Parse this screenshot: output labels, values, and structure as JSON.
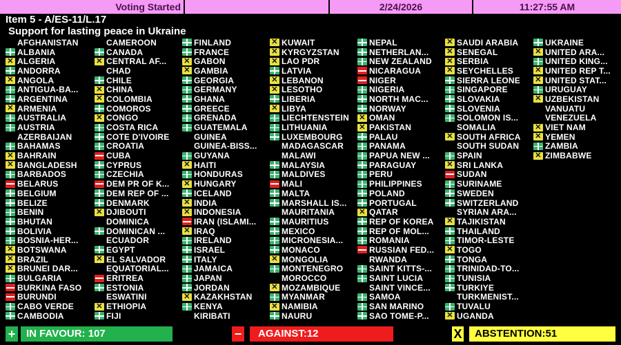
{
  "header": {
    "status": "Voting Started",
    "blank": "",
    "date": "2/24/2026",
    "time": "11:27:55 AM"
  },
  "item": {
    "title": "Item 5 - A/ES-11/L.17",
    "subtitle": "Support for lasting peace in Ukraine"
  },
  "vote_legend": {
    "Y": "in-favour",
    "N": "against",
    "A": "abstention",
    "": "not-voting"
  },
  "colors": {
    "in_favour": "#22b14c",
    "against": "#ee1c1c",
    "abstention": "#ffff40",
    "header": "#f59af5"
  },
  "columns": [
    [
      [
        "AFGHANISTAN",
        ""
      ],
      [
        "ALBANIA",
        "Y"
      ],
      [
        "ALGERIA",
        "A"
      ],
      [
        "ANDORRA",
        "Y"
      ],
      [
        "ANGOLA",
        "A"
      ],
      [
        "ANTIGUA-BA...",
        "Y"
      ],
      [
        "ARGENTINA",
        "Y"
      ],
      [
        "ARMENIA",
        "A"
      ],
      [
        "AUSTRALIA",
        "Y"
      ],
      [
        "AUSTRIA",
        "Y"
      ],
      [
        "AZERBAIJAN",
        ""
      ],
      [
        "BAHAMAS",
        "Y"
      ],
      [
        "BAHRAIN",
        "A"
      ],
      [
        "BANGLADESH",
        "A"
      ],
      [
        "BARBADOS",
        "Y"
      ],
      [
        "BELARUS",
        "N"
      ],
      [
        "BELGIUM",
        "Y"
      ],
      [
        "BELIZE",
        "Y"
      ],
      [
        "BENIN",
        "Y"
      ],
      [
        "BHUTAN",
        "Y"
      ],
      [
        "BOLIVIA",
        "Y"
      ],
      [
        "BOSNIA-HER...",
        "Y"
      ],
      [
        "BOTSWANA",
        "A"
      ],
      [
        "BRAZIL",
        "A"
      ],
      [
        "BRUNEI DAR...",
        "A"
      ],
      [
        "BULGARIA",
        "Y"
      ],
      [
        "BURKINA FASO",
        "N"
      ],
      [
        "BURUNDI",
        "N"
      ],
      [
        "CABO VERDE",
        "Y"
      ],
      [
        "CAMBODIA",
        "Y"
      ]
    ],
    [
      [
        "CAMEROON",
        ""
      ],
      [
        "CANADA",
        "Y"
      ],
      [
        "CENTRAL AF...",
        "A"
      ],
      [
        "CHAD",
        ""
      ],
      [
        "CHILE",
        "Y"
      ],
      [
        "CHINA",
        "A"
      ],
      [
        "COLOMBIA",
        "A"
      ],
      [
        "COMOROS",
        "Y"
      ],
      [
        "CONGO",
        "A"
      ],
      [
        "COSTA RICA",
        "Y"
      ],
      [
        "COTE D'IVOIRE",
        "Y"
      ],
      [
        "CROATIA",
        "Y"
      ],
      [
        "CUBA",
        "N"
      ],
      [
        "CYPRUS",
        "Y"
      ],
      [
        "CZECHIA",
        "Y"
      ],
      [
        "DEM PR OF K...",
        "N"
      ],
      [
        "DEM REP OF ...",
        "Y"
      ],
      [
        "DENMARK",
        "Y"
      ],
      [
        "DJIBOUTI",
        "A"
      ],
      [
        "DOMINICA",
        ""
      ],
      [
        "DOMINICAN ...",
        "Y"
      ],
      [
        "ECUADOR",
        ""
      ],
      [
        "EGYPT",
        "Y"
      ],
      [
        "EL SALVADOR",
        "A"
      ],
      [
        "EQUATORIAL...",
        ""
      ],
      [
        "ERITREA",
        "N"
      ],
      [
        "ESTONIA",
        "Y"
      ],
      [
        "ESWATINI",
        ""
      ],
      [
        "ETHIOPIA",
        "A"
      ],
      [
        "FIJI",
        "Y"
      ]
    ],
    [
      [
        "FINLAND",
        "Y"
      ],
      [
        "FRANCE",
        "Y"
      ],
      [
        "GABON",
        "A"
      ],
      [
        "GAMBIA",
        "A"
      ],
      [
        "GEORGIA",
        "Y"
      ],
      [
        "GERMANY",
        "Y"
      ],
      [
        "GHANA",
        "Y"
      ],
      [
        "GREECE",
        "Y"
      ],
      [
        "GRENADA",
        "Y"
      ],
      [
        "GUATEMALA",
        "Y"
      ],
      [
        "GUINEA",
        ""
      ],
      [
        "GUINEA-BISS...",
        ""
      ],
      [
        "GUYANA",
        "Y"
      ],
      [
        "HAITI",
        "A"
      ],
      [
        "HONDURAS",
        "Y"
      ],
      [
        "HUNGARY",
        "A"
      ],
      [
        "ICELAND",
        "Y"
      ],
      [
        "INDIA",
        "A"
      ],
      [
        "INDONESIA",
        "A"
      ],
      [
        "IRAN (ISLAMI...",
        "N"
      ],
      [
        "IRAQ",
        "A"
      ],
      [
        "IRELAND",
        "Y"
      ],
      [
        "ISRAEL",
        "Y"
      ],
      [
        "ITALY",
        "Y"
      ],
      [
        "JAMAICA",
        "Y"
      ],
      [
        "JAPAN",
        "Y"
      ],
      [
        "JORDAN",
        "Y"
      ],
      [
        "KAZAKHSTAN",
        "A"
      ],
      [
        "KENYA",
        "Y"
      ],
      [
        "KIRIBATI",
        ""
      ]
    ],
    [
      [
        "KUWAIT",
        "A"
      ],
      [
        "KYRGYZSTAN",
        "A"
      ],
      [
        "LAO PDR",
        "A"
      ],
      [
        "LATVIA",
        "Y"
      ],
      [
        "LEBANON",
        "A"
      ],
      [
        "LESOTHO",
        "A"
      ],
      [
        "LIBERIA",
        "Y"
      ],
      [
        "LIBYA",
        "A"
      ],
      [
        "LIECHTENSTEIN",
        "Y"
      ],
      [
        "LITHUANIA",
        "Y"
      ],
      [
        "LUXEMBOURG",
        "Y"
      ],
      [
        "MADAGASCAR",
        ""
      ],
      [
        "MALAWI",
        ""
      ],
      [
        "MALAYSIA",
        "Y"
      ],
      [
        "MALDIVES",
        "Y"
      ],
      [
        "MALI",
        "N"
      ],
      [
        "MALTA",
        "Y"
      ],
      [
        "MARSHALL IS...",
        "Y"
      ],
      [
        "MAURITANIA",
        ""
      ],
      [
        "MAURITIUS",
        "Y"
      ],
      [
        "MEXICO",
        "Y"
      ],
      [
        "MICRONESIA...",
        "Y"
      ],
      [
        "MONACO",
        "Y"
      ],
      [
        "MONGOLIA",
        "A"
      ],
      [
        "MONTENEGRO",
        "Y"
      ],
      [
        "MOROCCO",
        ""
      ],
      [
        "MOZAMBIQUE",
        "A"
      ],
      [
        "MYANMAR",
        "Y"
      ],
      [
        "NAMIBIA",
        "A"
      ],
      [
        "NAURU",
        "Y"
      ]
    ],
    [
      [
        "NEPAL",
        "Y"
      ],
      [
        "NETHERLAN...",
        "Y"
      ],
      [
        "NEW ZEALAND",
        "Y"
      ],
      [
        "NICARAGUA",
        "N"
      ],
      [
        "NIGER",
        "N"
      ],
      [
        "NIGERIA",
        "Y"
      ],
      [
        "NORTH MAC...",
        "Y"
      ],
      [
        "NORWAY",
        "Y"
      ],
      [
        "OMAN",
        "A"
      ],
      [
        "PAKISTAN",
        "A"
      ],
      [
        "PALAU",
        "Y"
      ],
      [
        "PANAMA",
        "Y"
      ],
      [
        "PAPUA NEW ...",
        "Y"
      ],
      [
        "PARAGUAY",
        "Y"
      ],
      [
        "PERU",
        "Y"
      ],
      [
        "PHILIPPINES",
        "Y"
      ],
      [
        "POLAND",
        "Y"
      ],
      [
        "PORTUGAL",
        "Y"
      ],
      [
        "QATAR",
        "A"
      ],
      [
        "REP OF KOREA",
        "Y"
      ],
      [
        "REP OF MOL...",
        "Y"
      ],
      [
        "ROMANIA",
        "Y"
      ],
      [
        "RUSSIAN FED...",
        "N"
      ],
      [
        "RWANDA",
        ""
      ],
      [
        "SAINT KITTS-...",
        "Y"
      ],
      [
        "SAINT LUCIA",
        "Y"
      ],
      [
        "SAINT VINCE...",
        ""
      ],
      [
        "SAMOA",
        "Y"
      ],
      [
        "SAN MARINO",
        "Y"
      ],
      [
        "SAO TOME-P...",
        "Y"
      ]
    ],
    [
      [
        "SAUDI ARABIA",
        "A"
      ],
      [
        "SENEGAL",
        "A"
      ],
      [
        "SERBIA",
        "A"
      ],
      [
        "SEYCHELLES",
        "A"
      ],
      [
        "SIERRA LEONE",
        "Y"
      ],
      [
        "SINGAPORE",
        "Y"
      ],
      [
        "SLOVAKIA",
        "Y"
      ],
      [
        "SLOVENIA",
        "Y"
      ],
      [
        "SOLOMON IS...",
        "Y"
      ],
      [
        "SOMALIA",
        ""
      ],
      [
        "SOUTH AFRICA",
        "A"
      ],
      [
        "SOUTH SUDAN",
        ""
      ],
      [
        "SPAIN",
        "Y"
      ],
      [
        "SRI LANKA",
        "A"
      ],
      [
        "SUDAN",
        "N"
      ],
      [
        "SURINAME",
        "Y"
      ],
      [
        "SWEDEN",
        "Y"
      ],
      [
        "SWITZERLAND",
        "Y"
      ],
      [
        "SYRIAN ARA...",
        ""
      ],
      [
        "TAJIKISTAN",
        "A"
      ],
      [
        "THAILAND",
        "Y"
      ],
      [
        "TIMOR-LESTE",
        "Y"
      ],
      [
        "TOGO",
        "A"
      ],
      [
        "TONGA",
        "Y"
      ],
      [
        "TRINIDAD-TO...",
        "Y"
      ],
      [
        "TUNISIA",
        "Y"
      ],
      [
        "TURKIYE",
        "Y"
      ],
      [
        "TURKMENIST...",
        ""
      ],
      [
        "TUVALU",
        "Y"
      ],
      [
        "UGANDA",
        "A"
      ]
    ],
    [
      [
        "UKRAINE",
        "Y"
      ],
      [
        "UNITED ARA...",
        "A"
      ],
      [
        "UNITED KING...",
        "Y"
      ],
      [
        "UNITED REP T...",
        "A"
      ],
      [
        "UNITED STAT...",
        "A"
      ],
      [
        "URUGUAY",
        "Y"
      ],
      [
        "UZBEKISTAN",
        "A"
      ],
      [
        "VANUATU",
        ""
      ],
      [
        "VENEZUELA",
        ""
      ],
      [
        "VIET NAM",
        "A"
      ],
      [
        "YEMEN",
        "A"
      ],
      [
        "ZAMBIA",
        "Y"
      ],
      [
        "ZIMBABWE",
        "A"
      ]
    ]
  ],
  "totals": {
    "in_favour": "IN FAVOUR: 107",
    "against": "AGAINST:12",
    "abstention": "ABSTENTION:51",
    "abstention_symbol": "X"
  }
}
